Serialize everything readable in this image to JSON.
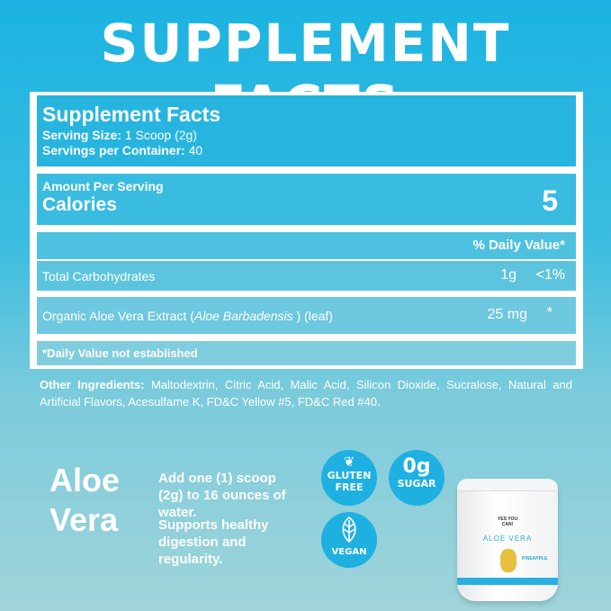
{
  "banner_title": "SUPPLEMENT FACTS",
  "facts": {
    "title": "Supplement Facts",
    "serving_size_label": "Serving Size:",
    "serving_size": "1 Scoop (2g)",
    "servings_label": "Servings per Container:",
    "servings": "40",
    "amount_per_serving": "Amount Per Serving",
    "calories_label": "Calories",
    "calories": "5",
    "dv_header": "% Daily Value*",
    "rows": [
      {
        "name": "Total Carbohydrates",
        "amount": "1g",
        "dv": "<1%"
      },
      {
        "name_pre": "Organic Aloe Vera Extract (",
        "name_italic": "Aloe Barbadensis",
        "name_post": " ) (leaf)",
        "amount": "25 mg",
        "dv": "*"
      }
    ],
    "footnote": "*Daily Value not established"
  },
  "other_ingredients_label": "Other Ingredients:",
  "other_ingredients": "Maltodextrin, Citric Acid, Malic Acid, Silicon Dioxide, Sucralose, Natural and Artificial Flavors, Acesulfame K, FD&C Yellow #5, FD&C Red #40.",
  "product_name_line1": "Aloe",
  "product_name_line2": "Vera",
  "directions": "Add one (1) scoop (2g) to 16 ounces of water.",
  "benefit": "Supports healthy digestion and regularity.",
  "badges": {
    "gluten1": "GLUTEN",
    "gluten2": "FREE",
    "sugar1": "0g",
    "sugar2": "SUGAR",
    "vegan": "VEGAN"
  },
  "jar": {
    "brand": "YES YOU CAN!",
    "name": "ALOE VERA",
    "flavor": "PINEAPPLE"
  },
  "colors": {
    "accent": "#1fb0e2"
  }
}
